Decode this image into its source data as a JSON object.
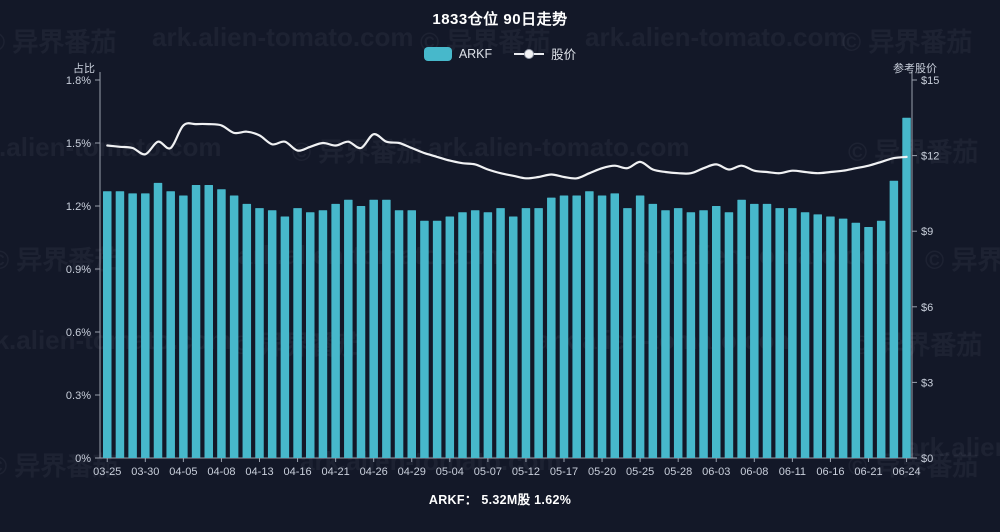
{
  "title": "1833仓位 90日走势",
  "legend": {
    "bar_label": "ARKF",
    "line_label": "股价"
  },
  "footer": {
    "text": "ARKF： 5.32M股 1.62%"
  },
  "watermark": {
    "brand": "© 异界番茄",
    "domain": "ark.alien-tomato.com"
  },
  "colors": {
    "background": "#131828",
    "bar": "#47b8cb",
    "line": "#f0f1f3",
    "axis": "#9aa0ad",
    "tick_text": "#c9cfdb",
    "title_text": "#ffffff"
  },
  "chart_data": {
    "type": "bar",
    "title": "1833仓位 90日走势",
    "n_points": 64,
    "x_tick_every": 3,
    "x_tick_labels": [
      "03-25",
      "03-30",
      "04-05",
      "04-08",
      "04-13",
      "04-16",
      "04-21",
      "04-26",
      "04-29",
      "05-04",
      "05-07",
      "05-12",
      "05-17",
      "05-20",
      "05-25",
      "05-28",
      "06-03",
      "06-08",
      "06-11",
      "06-16",
      "06-21",
      "06-24"
    ],
    "left_axis": {
      "title": "占比",
      "range": [
        0,
        1.8
      ],
      "tick_values": [
        1.8,
        1.5,
        1.2,
        0.9,
        0.6,
        0.3,
        0
      ],
      "tick_labels": [
        "1.8%",
        "1.5%",
        "1.2%",
        "0.9%",
        "0.6%",
        "0.3%",
        "0%"
      ]
    },
    "right_axis": {
      "title": "参考股价",
      "range": [
        0,
        15
      ],
      "tick_values": [
        15,
        12,
        9,
        6,
        3,
        0
      ],
      "tick_labels": [
        "$15",
        "$12",
        "$9",
        "$6",
        "$3",
        "$0"
      ]
    },
    "grid": false,
    "legend_position": "top-center",
    "series": [
      {
        "name": "ARKF",
        "kind": "bar",
        "axis": "left",
        "unit": "%",
        "values": [
          1.27,
          1.27,
          1.26,
          1.26,
          1.31,
          1.27,
          1.25,
          1.3,
          1.3,
          1.28,
          1.25,
          1.21,
          1.19,
          1.18,
          1.15,
          1.19,
          1.17,
          1.18,
          1.21,
          1.23,
          1.2,
          1.23,
          1.23,
          1.18,
          1.18,
          1.13,
          1.13,
          1.15,
          1.17,
          1.18,
          1.17,
          1.19,
          1.15,
          1.19,
          1.19,
          1.24,
          1.25,
          1.25,
          1.27,
          1.25,
          1.26,
          1.19,
          1.25,
          1.21,
          1.18,
          1.19,
          1.17,
          1.18,
          1.2,
          1.17,
          1.23,
          1.21,
          1.21,
          1.19,
          1.19,
          1.17,
          1.16,
          1.15,
          1.14,
          1.12,
          1.1,
          1.13,
          1.32,
          1.62
        ]
      },
      {
        "name": "股价",
        "kind": "line",
        "axis": "right",
        "unit": "$",
        "values": [
          12.4,
          12.35,
          12.3,
          12.05,
          12.55,
          12.3,
          13.2,
          13.25,
          13.25,
          13.2,
          12.9,
          12.95,
          12.8,
          12.45,
          12.55,
          12.2,
          12.35,
          12.5,
          12.4,
          12.55,
          12.3,
          12.85,
          12.55,
          12.5,
          12.3,
          12.1,
          11.95,
          11.8,
          11.7,
          11.65,
          11.45,
          11.3,
          11.2,
          11.1,
          11.15,
          11.25,
          11.15,
          11.1,
          11.3,
          11.5,
          11.6,
          11.5,
          11.75,
          11.45,
          11.35,
          11.3,
          11.3,
          11.5,
          11.65,
          11.45,
          11.6,
          11.4,
          11.35,
          11.3,
          11.4,
          11.35,
          11.3,
          11.35,
          11.4,
          11.5,
          11.6,
          11.75,
          11.9,
          11.95
        ]
      }
    ],
    "summary": "ARKF： 5.32M股 1.62%"
  }
}
